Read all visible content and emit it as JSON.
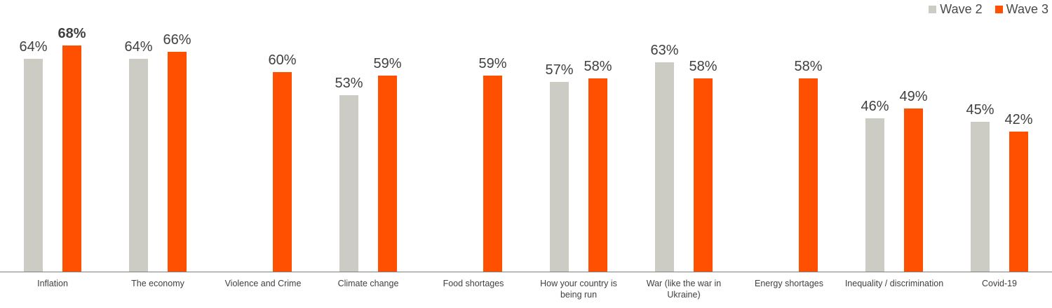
{
  "chart_data": {
    "type": "bar",
    "title": "",
    "xlabel": "",
    "ylabel": "",
    "value_suffix": "%",
    "gridlines": false,
    "legend_position": "top-right",
    "ylim": [
      0,
      82
    ],
    "categories": [
      "Inflation",
      "The economy",
      "Violence and Crime",
      "Climate change",
      "Food shortages",
      "How your country is being run",
      "War (like the war in Ukraine)",
      "Energy shortages",
      "Inequality / discrimination",
      "Covid-19"
    ],
    "series": [
      {
        "name": "Wave 2",
        "color": "#cdccc4",
        "values": [
          64,
          64,
          null,
          53,
          null,
          57,
          63,
          null,
          46,
          45
        ]
      },
      {
        "name": "Wave 3",
        "color": "#fe5000",
        "values": [
          68,
          66,
          60,
          59,
          59,
          58,
          58,
          58,
          49,
          42
        ]
      }
    ],
    "emphasized_label": {
      "category_index": 0,
      "series_index": 1
    }
  },
  "colors": {
    "value_label_text": "#404040",
    "category_label_text": "#404040",
    "legend_text": "#4a4a4a",
    "axis_line": "#808080"
  }
}
